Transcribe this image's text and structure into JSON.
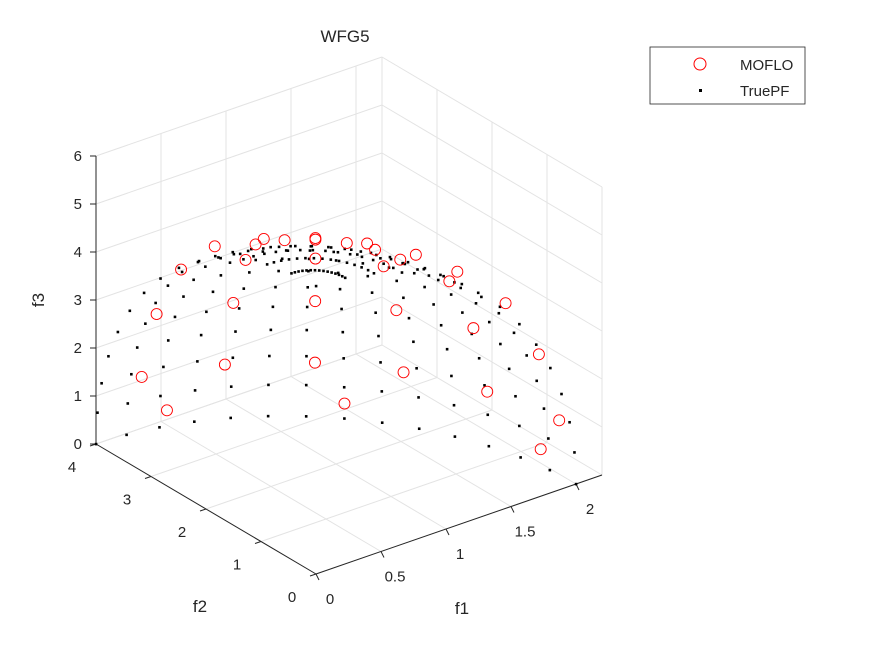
{
  "chart_data": {
    "type": "scatter",
    "title": "WFG5",
    "xlabel": "f1",
    "ylabel": "f2",
    "zlabel": "f3",
    "xlim": [
      0,
      2.2
    ],
    "ylim": [
      0,
      4
    ],
    "zlim": [
      0,
      6
    ],
    "xticks": [
      "0",
      "0.5",
      "1",
      "1.5",
      "2"
    ],
    "yticks": [
      "0",
      "1",
      "2",
      "3",
      "4"
    ],
    "zticks": [
      "0",
      "1",
      "2",
      "3",
      "4",
      "5",
      "6"
    ],
    "grid": true,
    "view": {
      "azimuth": -37.5,
      "elevation": 30
    },
    "legend": {
      "placement": "top-right",
      "entries": [
        {
          "label": "MOFLO",
          "marker": "open-circle",
          "color": "#ff0000"
        },
        {
          "label": "TruePF",
          "marker": "dot",
          "color": "#000000"
        }
      ]
    },
    "series": [
      {
        "name": "MOFLO",
        "color": "#ff0000",
        "points": [
          [
            1.96,
            0.34,
            1.04
          ],
          [
            1.85,
            1.35,
            1.04
          ],
          [
            1.61,
            2.26,
            1.04
          ],
          [
            1.27,
            3.02,
            1.04
          ],
          [
            0.83,
            3.57,
            1.04
          ],
          [
            0.34,
            3.88,
            1.04
          ],
          [
            1.8,
            0.32,
            2.54
          ],
          [
            1.7,
            1.24,
            2.54
          ],
          [
            1.48,
            2.08,
            2.54
          ],
          [
            1.17,
            2.78,
            2.54
          ],
          [
            0.77,
            3.28,
            2.54
          ],
          [
            0.32,
            3.57,
            2.54
          ],
          [
            1.53,
            0.27,
            3.86
          ],
          [
            1.44,
            1.05,
            3.86
          ],
          [
            1.25,
            1.76,
            3.86
          ],
          [
            0.99,
            2.35,
            3.86
          ],
          [
            0.65,
            2.78,
            3.86
          ],
          [
            0.27,
            3.02,
            3.86
          ],
          [
            1.14,
            0.2,
            4.91
          ],
          [
            1.08,
            0.79,
            4.91
          ],
          [
            0.94,
            1.32,
            4.91
          ],
          [
            0.74,
            1.76,
            4.91
          ],
          [
            0.49,
            2.08,
            4.91
          ],
          [
            0.2,
            2.26,
            4.91
          ],
          [
            0.68,
            0.12,
            5.64
          ],
          [
            0.64,
            0.47,
            5.64
          ],
          [
            0.56,
            0.78,
            5.64
          ],
          [
            0.44,
            1.05,
            5.64
          ],
          [
            0.29,
            1.24,
            5.64
          ],
          [
            0.12,
            1.35,
            5.64
          ],
          [
            1.97,
            0.69,
            0.21
          ],
          [
            1.41,
            2.83,
            0.21
          ],
          [
            0.52,
            3.86,
            0.21
          ]
        ]
      },
      {
        "name": "TruePF",
        "color": "#000000",
        "surface": "ellipsoid",
        "radii": [
          2,
          4,
          6
        ],
        "grid": [
          14,
          14
        ]
      }
    ]
  }
}
